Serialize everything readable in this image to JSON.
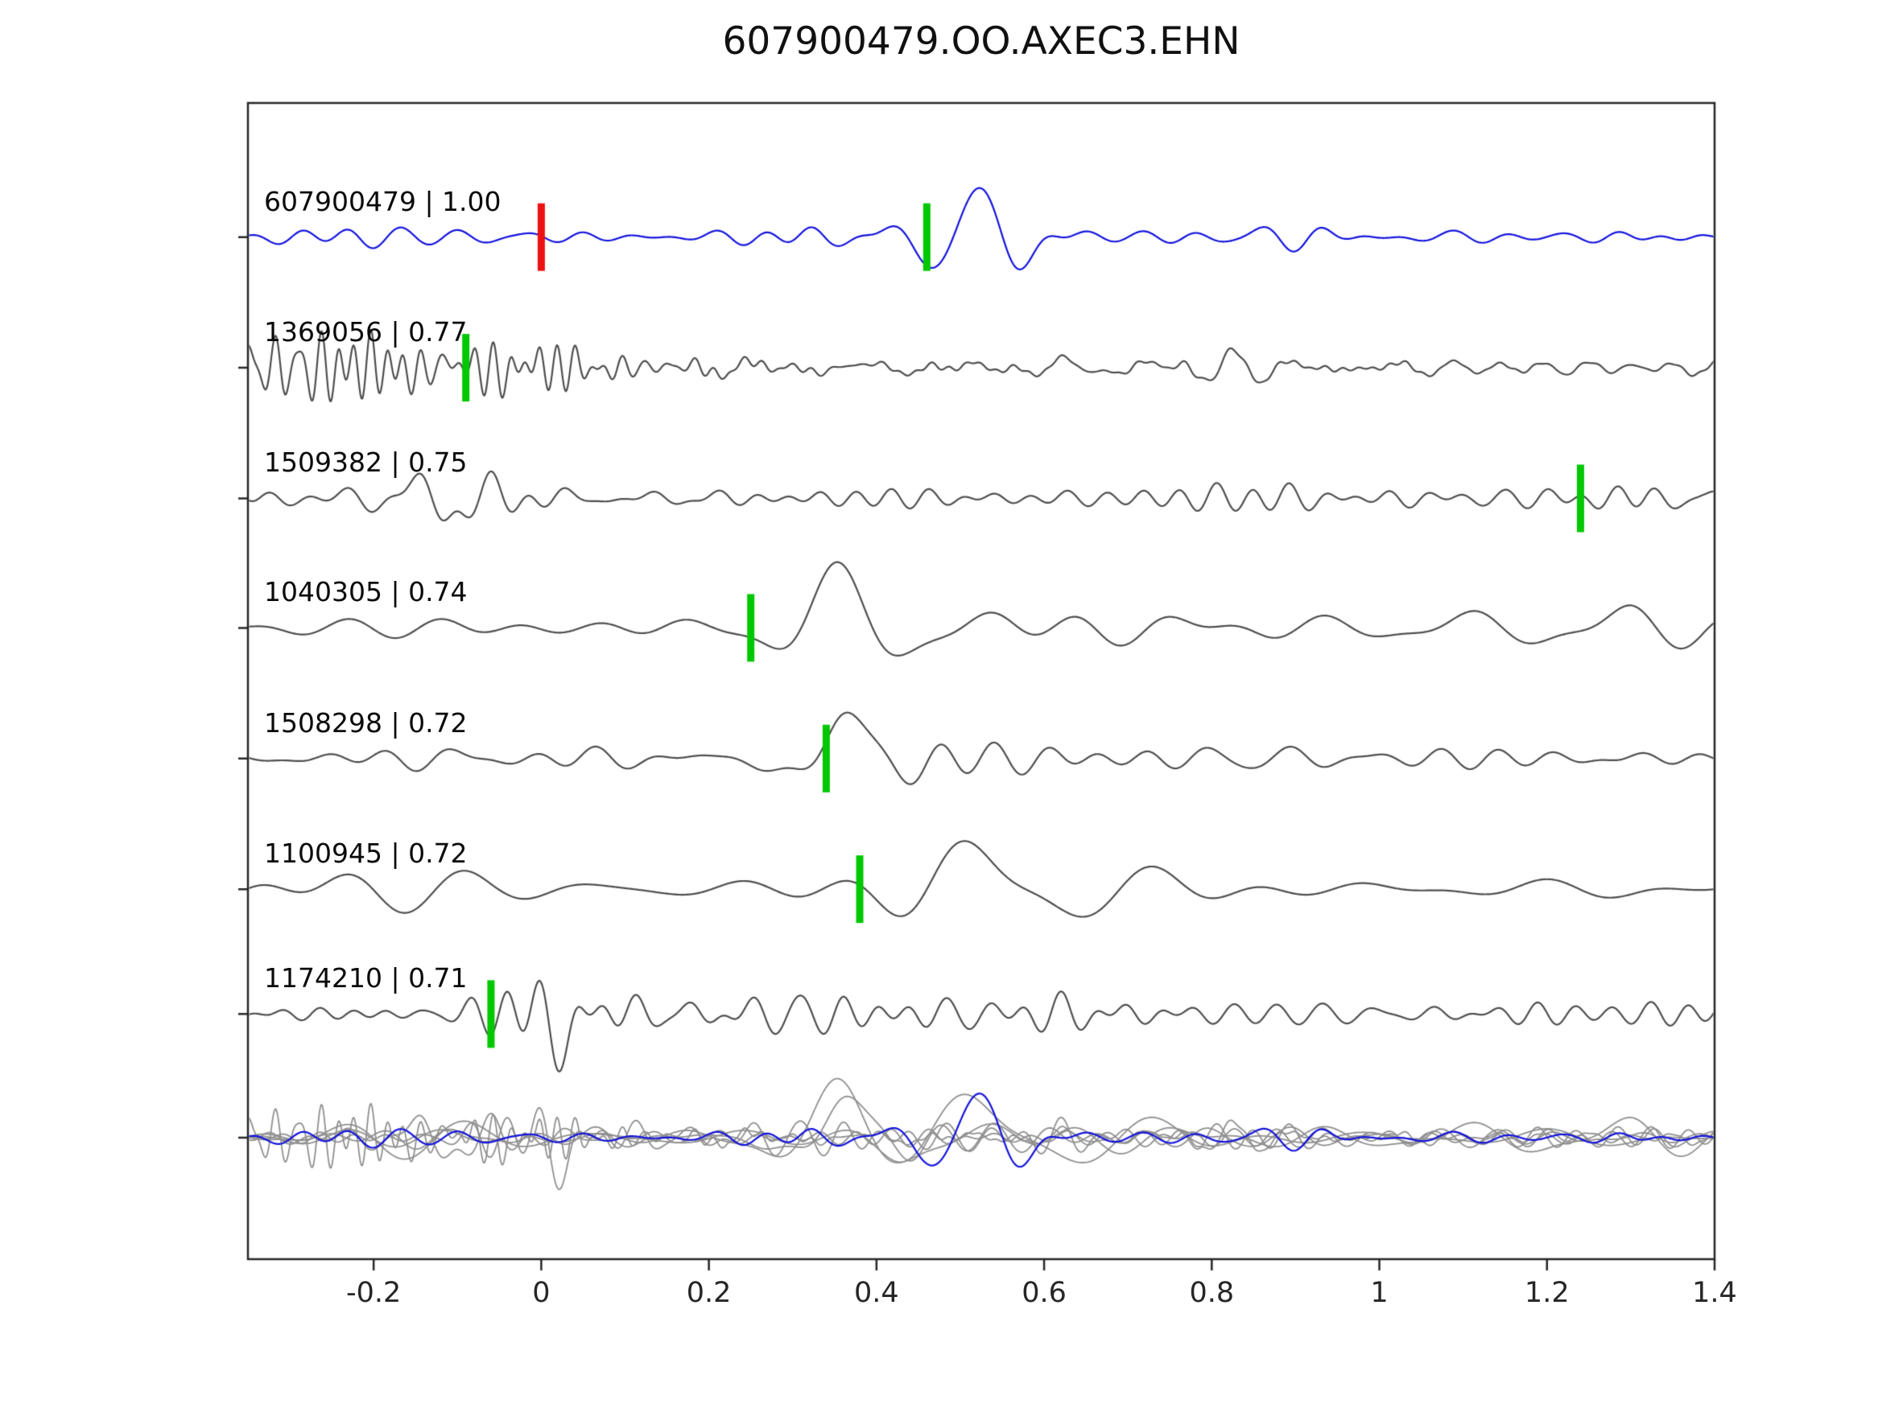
{
  "title": "607900479.OO.AXEC3.EHN",
  "chart_data": {
    "type": "line",
    "title": "607900479.OO.AXEC3.EHN",
    "xlabel": "",
    "ylabel": "",
    "grid": false,
    "legend": "none",
    "x_axis": {
      "min": -0.35,
      "max": 1.4,
      "ticks": [
        "-0.2",
        "0",
        "0.2",
        "0.4",
        "0.6",
        "0.8",
        "1",
        "1.2",
        "1.4"
      ],
      "tick_values": [
        -0.2,
        0,
        0.2,
        0.4,
        0.6,
        0.8,
        1,
        1.2,
        1.4
      ]
    },
    "colors": {
      "axis": "#262626",
      "reference_trace": "#1212dd",
      "match_trace": "#4d4d4d",
      "overlay_gray": "#8f8f8f",
      "pick_marker": "#00c800",
      "reference_pick_marker": "#ee1111"
    },
    "traces": [
      {
        "id": "607900479",
        "score": "1.00",
        "display": "607900479 | 1.00",
        "role": "reference",
        "color": "#1212dd",
        "pick": {
          "x": 0.46,
          "color": "#00c800"
        },
        "ref_pick": {
          "x": 0.0,
          "color": "#ee1111"
        },
        "waveform_model": {
          "components": [
            {
              "seed": 11,
              "freq": [
                7,
                22
              ],
              "envelope": [
                [
                  -0.35,
                  9
                ],
                [
                  0.35,
                  9
                ],
                [
                  0.45,
                  13
                ],
                [
                  0.55,
                  14
                ],
                [
                  0.7,
                  11
                ],
                [
                  0.82,
                  9
                ],
                [
                  1.4,
                  9
                ]
              ]
            }
          ],
          "wavelets": [
            {
              "x0": 0.52,
              "sigma": 0.05,
              "freq": 9,
              "amp": 70,
              "phase": 1.57
            }
          ]
        }
      },
      {
        "id": "1369056",
        "score": "0.77",
        "display": "1369056 | 0.77",
        "role": "match",
        "color": "#4d4d4d",
        "pick": {
          "x": -0.09,
          "color": "#00c800"
        },
        "waveform_model": {
          "components": [
            {
              "seed": 21,
              "freq": [
                34,
                54
              ],
              "envelope": [
                [
                  -0.35,
                  44
                ],
                [
                  -0.25,
                  56
                ],
                [
                  -0.12,
                  58
                ],
                [
                  0,
                  40
                ],
                [
                  0.08,
                  22
                ],
                [
                  0.18,
                  8
                ],
                [
                  0.3,
                  4
                ],
                [
                  1.4,
                  3
                ]
              ]
            },
            {
              "seed": 22,
              "freq": [
                8,
                22
              ],
              "envelope": [
                [
                  -0.35,
                  4
                ],
                [
                  0.1,
                  9
                ],
                [
                  0.3,
                  13
                ],
                [
                  1.4,
                  12
                ]
              ]
            }
          ],
          "wavelets": []
        }
      },
      {
        "id": "1509382",
        "score": "0.75",
        "display": "1509382 | 0.75",
        "role": "match",
        "color": "#4d4d4d",
        "pick": {
          "x": 1.24,
          "color": "#00c800"
        },
        "waveform_model": {
          "components": [
            {
              "seed": 31,
              "freq": [
                9,
                26
              ],
              "envelope": [
                [
                  -0.35,
                  12
                ],
                [
                  -0.18,
                  18
                ],
                [
                  -0.1,
                  28
                ],
                [
                  -0.02,
                  20
                ],
                [
                  0.1,
                  15
                ],
                [
                  0.6,
                  14
                ],
                [
                  1.0,
                  14
                ],
                [
                  1.2,
                  19
                ],
                [
                  1.32,
                  22
                ],
                [
                  1.4,
                  13
                ]
              ]
            }
          ],
          "wavelets": [
            {
              "x0": -0.12,
              "sigma": 0.03,
              "freq": 11,
              "amp": 26,
              "phase": 3.6
            }
          ]
        }
      },
      {
        "id": "1040305",
        "score": "0.74",
        "display": "1040305 | 0.74",
        "role": "match",
        "color": "#4d4d4d",
        "pick": {
          "x": 0.25,
          "color": "#00c800"
        },
        "waveform_model": {
          "components": [
            {
              "seed": 41,
              "freq": [
                4,
                11
              ],
              "envelope": [
                [
                  -0.35,
                  10
                ],
                [
                  0.05,
                  12
                ],
                [
                  0.2,
                  18
                ],
                [
                  0.35,
                  32
                ],
                [
                  0.5,
                  38
                ],
                [
                  0.7,
                  30
                ],
                [
                  0.9,
                  24
                ],
                [
                  1.15,
                  26
                ],
                [
                  1.3,
                  32
                ],
                [
                  1.4,
                  28
                ]
              ]
            }
          ],
          "wavelets": [
            {
              "x0": 0.345,
              "sigma": 0.05,
              "freq": 5.5,
              "amp": 52,
              "phase": 1.57
            }
          ]
        }
      },
      {
        "id": "1508298",
        "score": "0.72",
        "display": "1508298 | 0.72",
        "role": "match",
        "color": "#4d4d4d",
        "pick": {
          "x": 0.34,
          "color": "#00c800"
        },
        "waveform_model": {
          "components": [
            {
              "seed": 51,
              "freq": [
                6,
                17
              ],
              "envelope": [
                [
                  -0.35,
                  11
                ],
                [
                  0.05,
                  13
                ],
                [
                  0.25,
                  16
                ],
                [
                  0.5,
                  24
                ],
                [
                  0.7,
                  18
                ],
                [
                  1.0,
                  13
                ],
                [
                  1.4,
                  12
                ]
              ]
            }
          ],
          "wavelets": [
            {
              "x0": 0.36,
              "sigma": 0.05,
              "freq": 6,
              "amp": 58,
              "phase": 1.3
            }
          ]
        }
      },
      {
        "id": "1100945",
        "score": "0.72",
        "display": "1100945 | 0.72",
        "role": "match",
        "color": "#4d4d4d",
        "pick": {
          "x": 0.38,
          "color": "#00c800"
        },
        "waveform_model": {
          "components": [
            {
              "seed": 61,
              "freq": [
                3.5,
                9
              ],
              "envelope": [
                [
                  -0.35,
                  50
                ],
                [
                  -0.2,
                  42
                ],
                [
                  -0.05,
                  24
                ],
                [
                  0.15,
                  18
                ],
                [
                  0.35,
                  22
                ],
                [
                  0.6,
                  30
                ],
                [
                  0.85,
                  24
                ],
                [
                  1.1,
                  26
                ],
                [
                  1.3,
                  32
                ],
                [
                  1.4,
                  30
                ]
              ]
            }
          ],
          "wavelets": [
            {
              "x0": 0.49,
              "sigma": 0.06,
              "freq": 5,
              "amp": 52,
              "phase": 1.4
            }
          ]
        }
      },
      {
        "id": "1174210",
        "score": "0.71",
        "display": "1174210 | 0.71",
        "role": "match",
        "color": "#4d4d4d",
        "pick": {
          "x": -0.06,
          "color": "#00c800"
        },
        "waveform_model": {
          "components": [
            {
              "seed": 71,
              "freq": [
                12,
                30
              ],
              "envelope": [
                [
                  -0.35,
                  8
                ],
                [
                  -0.12,
                  10
                ],
                [
                  -0.04,
                  28
                ],
                [
                  0.05,
                  40
                ],
                [
                  0.18,
                  34
                ],
                [
                  0.3,
                  24
                ],
                [
                  0.55,
                  18
                ],
                [
                  0.85,
                  15
                ],
                [
                  1.2,
                  11
                ],
                [
                  1.4,
                  9
                ]
              ]
            }
          ],
          "wavelets": [
            {
              "x0": 0.03,
              "sigma": 0.03,
              "freq": 9,
              "amp": 34,
              "phase": -1.5
            }
          ]
        }
      }
    ],
    "overlay": {
      "description": "all traces superimposed on bottom row, reference in blue on top",
      "gray_color": "#8f8f8f",
      "blue_color": "#1212dd",
      "blue_trace_index": 0,
      "scale": 0.9
    }
  }
}
